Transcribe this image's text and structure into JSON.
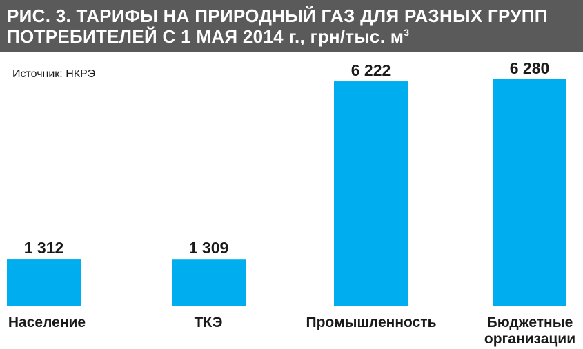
{
  "header": {
    "title_line1": "РИС. 3. ТАРИФЫ НА ПРИРОДНЫЙ ГАЗ ДЛЯ РАЗНЫХ ГРУПП",
    "title_line2": "ПОТРЕБИТЕЛЕЙ С 1 МАЯ 2014 г., грн/тыс. м",
    "title_sup": "3"
  },
  "source": "Источник: НКРЭ",
  "colors": {
    "bar": "#00AEEF",
    "header_bg": "#5A5A5A"
  },
  "chart_data": {
    "type": "bar",
    "categories": [
      [
        "Население"
      ],
      [
        "ТКЭ"
      ],
      [
        "Промышленность"
      ],
      [
        "Бюджетные",
        "организации"
      ]
    ],
    "values": [
      1312,
      1309,
      6222,
      6280
    ],
    "value_labels": [
      "1 312",
      "1 309",
      "6 222",
      "6 280"
    ],
    "title": "РИС. 3. ТАРИФЫ НА ПРИРОДНЫЙ ГАЗ ДЛЯ РАЗНЫХ ГРУПП ПОТРЕБИТЕЛЕЙ С 1 МАЯ 2014 г., грн/тыс. м3",
    "ylim": [
      0,
      6500
    ],
    "grid": false,
    "legend": "none"
  }
}
